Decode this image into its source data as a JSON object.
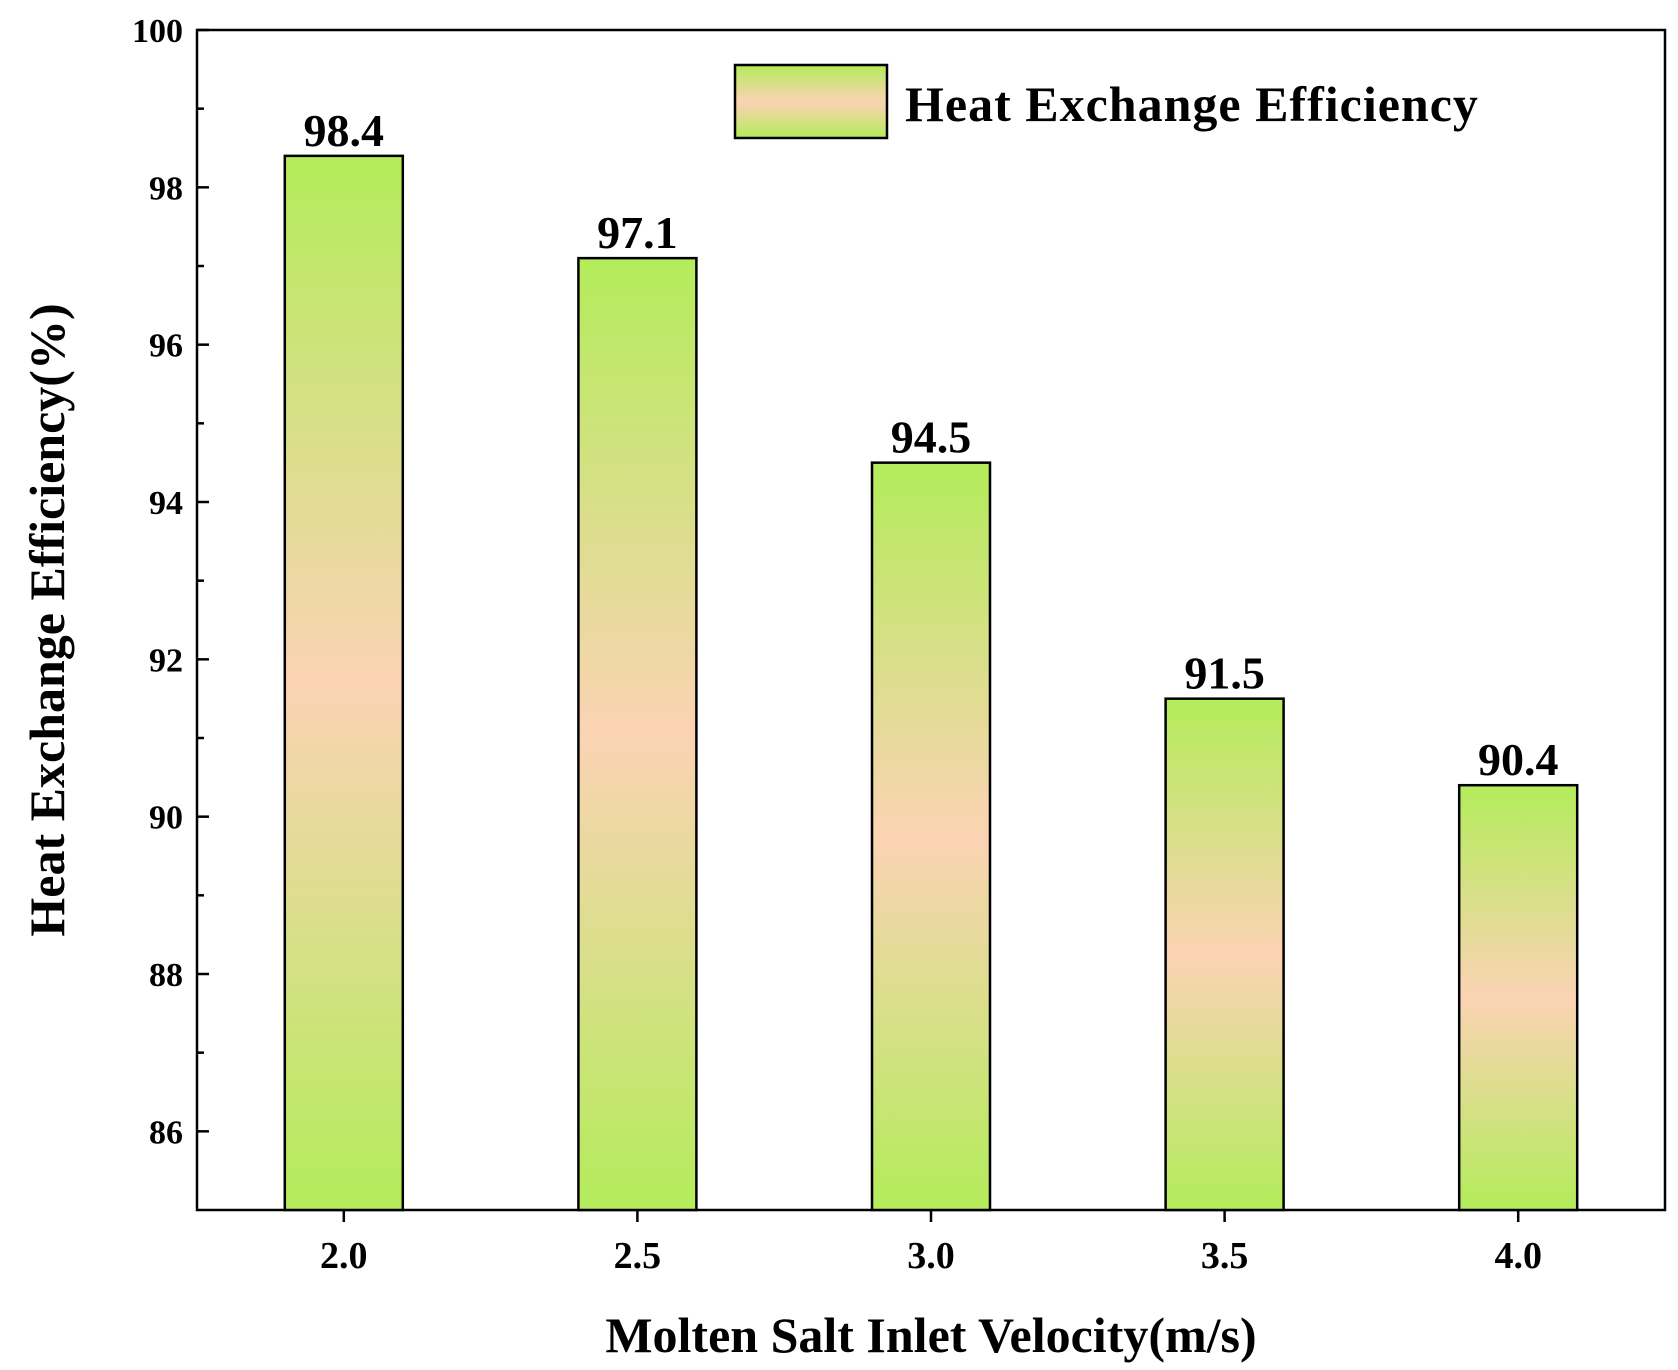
{
  "chart_data": {
    "type": "bar",
    "title": "",
    "xlabel": "Molten Salt Inlet Velocity(m/s)",
    "ylabel": "Heat Exchange Efficiency(%)",
    "categories": [
      "2.0",
      "2.5",
      "3.0",
      "3.5",
      "4.0"
    ],
    "series": [
      {
        "name": "Heat Exchange Efficiency",
        "values": [
          98.4,
          97.1,
          94.5,
          91.5,
          90.4
        ]
      }
    ],
    "data_labels": [
      "98.4",
      "97.1",
      "94.5",
      "91.5",
      "90.4"
    ],
    "ylim": [
      85,
      100
    ],
    "yticks": [
      86,
      88,
      90,
      92,
      94,
      96,
      98,
      100
    ],
    "ytick_labels": [
      "86",
      "88",
      "90",
      "92",
      "94",
      "96",
      "98",
      "100"
    ],
    "grid": false,
    "legend": {
      "position": "top-right",
      "label": "Heat Exchange Efficiency"
    },
    "colors": {
      "bar_edge_color": "#b3ec5a",
      "bar_center_color": "#fbd3b4",
      "axis": "#000000"
    }
  }
}
